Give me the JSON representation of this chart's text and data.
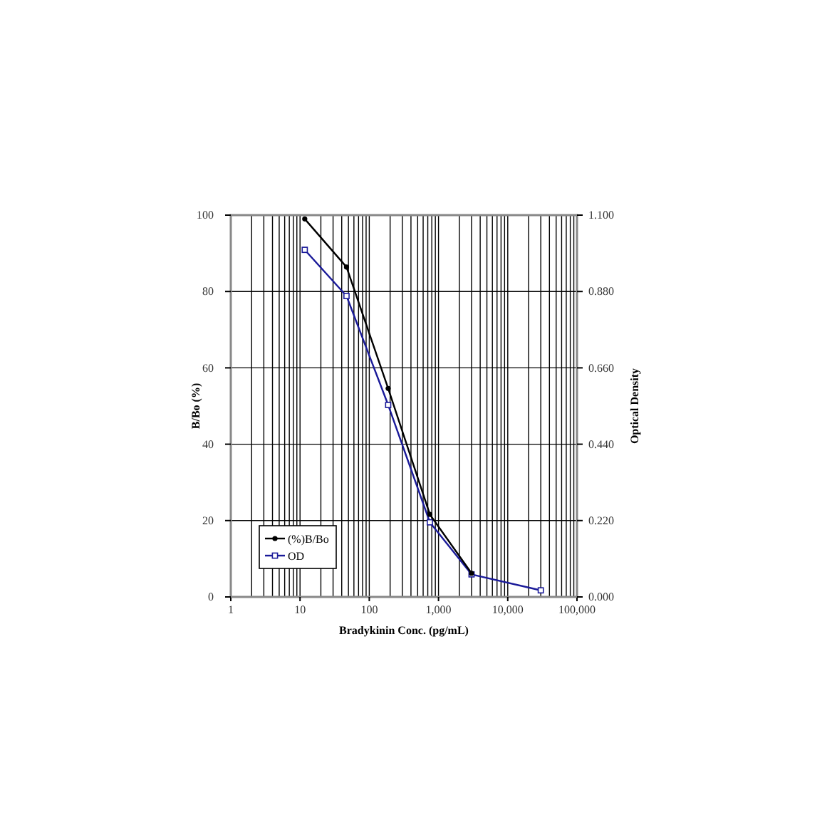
{
  "chart_data": {
    "type": "line",
    "xlabel": "Bradykinin Conc. (pg/mL)",
    "ylabel": "B/Bo (%)",
    "y2label": "Optical Density",
    "x": [
      11.7,
      46.9,
      187.5,
      750,
      3000,
      30000
    ],
    "series": [
      {
        "name": "(%)B/Bo",
        "color": "#000000",
        "marker": "circle",
        "values": [
          99,
          86.4,
          54.6,
          21.6,
          6.2,
          null
        ]
      },
      {
        "name": "OD",
        "color": "#1a1a99",
        "marker": "square",
        "axis": "y2",
        "values": [
          1.0,
          0.867,
          0.553,
          0.215,
          0.065,
          0.019
        ]
      }
    ],
    "log": "x",
    "xlim": [
      1,
      100000
    ],
    "xticks": [
      1,
      10,
      100,
      {
        "value": 1000,
        "label": "1,000"
      },
      {
        "value": 10000,
        "label": "10,000"
      },
      {
        "value": 100000,
        "label": "100,000"
      }
    ],
    "ylim": [
      0,
      100
    ],
    "yticks": [
      0,
      20,
      40,
      60,
      80,
      100
    ],
    "y2lim": [
      0,
      1.1
    ],
    "y2ticks": [
      {
        "value": 0,
        "label": "0.000"
      },
      {
        "value": 0.22,
        "label": "0.220"
      },
      {
        "value": 0.44,
        "label": "0.440"
      },
      {
        "value": 0.66,
        "label": "0.660"
      },
      {
        "value": 0.88,
        "label": "0.880"
      },
      {
        "value": 1.1,
        "label": "1.100"
      }
    ],
    "grid": true,
    "legend": "bottom left"
  }
}
